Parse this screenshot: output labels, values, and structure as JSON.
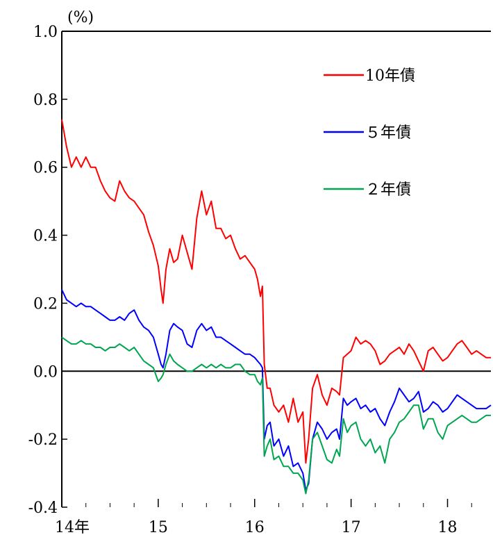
{
  "chart_data": {
    "type": "line",
    "unit_label": "(%)",
    "x_ticks": [
      "14年",
      "15",
      "16",
      "17",
      "18"
    ],
    "x_range": [
      2014.0,
      2018.45
    ],
    "y_ticks": [
      "1.0",
      "0.8",
      "0.6",
      "0.4",
      "0.2",
      "0.0",
      "-0.2",
      "-0.4"
    ],
    "y_tick_values": [
      1.0,
      0.8,
      0.6,
      0.4,
      0.2,
      0.0,
      -0.2,
      -0.4
    ],
    "ylim": [
      -0.4,
      1.0
    ],
    "grid": false,
    "legend_position": "top-right",
    "series": [
      {
        "name": "10年債",
        "color": "#ff0000",
        "x": [
          2014.0,
          2014.05,
          2014.1,
          2014.15,
          2014.2,
          2014.25,
          2014.3,
          2014.35,
          2014.4,
          2014.45,
          2014.5,
          2014.55,
          2014.6,
          2014.65,
          2014.7,
          2014.75,
          2014.8,
          2014.85,
          2014.9,
          2014.95,
          2015.0,
          2015.03,
          2015.05,
          2015.08,
          2015.12,
          2015.16,
          2015.2,
          2015.25,
          2015.3,
          2015.35,
          2015.4,
          2015.45,
          2015.5,
          2015.55,
          2015.6,
          2015.65,
          2015.7,
          2015.75,
          2015.8,
          2015.85,
          2015.9,
          2015.95,
          2016.0,
          2016.03,
          2016.06,
          2016.08,
          2016.1,
          2016.13,
          2016.16,
          2016.2,
          2016.25,
          2016.3,
          2016.35,
          2016.4,
          2016.45,
          2016.5,
          2016.53,
          2016.56,
          2016.6,
          2016.65,
          2016.7,
          2016.75,
          2016.8,
          2016.85,
          2016.88,
          2016.92,
          2016.96,
          2017.0,
          2017.05,
          2017.1,
          2017.15,
          2017.2,
          2017.25,
          2017.3,
          2017.35,
          2017.4,
          2017.45,
          2017.5,
          2017.55,
          2017.6,
          2017.65,
          2017.7,
          2017.75,
          2017.8,
          2017.85,
          2017.9,
          2017.95,
          2018.0,
          2018.05,
          2018.1,
          2018.15,
          2018.2,
          2018.25,
          2018.3,
          2018.35,
          2018.4,
          2018.45
        ],
        "y": [
          0.74,
          0.66,
          0.6,
          0.63,
          0.6,
          0.63,
          0.6,
          0.6,
          0.56,
          0.53,
          0.51,
          0.5,
          0.56,
          0.53,
          0.51,
          0.5,
          0.48,
          0.46,
          0.41,
          0.37,
          0.31,
          0.24,
          0.2,
          0.3,
          0.36,
          0.32,
          0.33,
          0.4,
          0.35,
          0.3,
          0.45,
          0.53,
          0.46,
          0.5,
          0.42,
          0.42,
          0.39,
          0.4,
          0.36,
          0.33,
          0.34,
          0.32,
          0.3,
          0.27,
          0.22,
          0.25,
          0.02,
          -0.05,
          -0.05,
          -0.1,
          -0.12,
          -0.1,
          -0.15,
          -0.08,
          -0.15,
          -0.12,
          -0.27,
          -0.2,
          -0.05,
          -0.01,
          -0.07,
          -0.1,
          -0.05,
          -0.06,
          -0.07,
          0.04,
          0.05,
          0.06,
          0.1,
          0.08,
          0.09,
          0.08,
          0.06,
          0.02,
          0.03,
          0.05,
          0.06,
          0.07,
          0.05,
          0.08,
          0.06,
          0.03,
          0.0,
          0.06,
          0.07,
          0.05,
          0.03,
          0.04,
          0.06,
          0.08,
          0.09,
          0.07,
          0.05,
          0.06,
          0.05,
          0.04,
          0.04
        ]
      },
      {
        "name": "５年債",
        "color": "#0000ff",
        "x": [
          2014.0,
          2014.05,
          2014.1,
          2014.15,
          2014.2,
          2014.25,
          2014.3,
          2014.35,
          2014.4,
          2014.45,
          2014.5,
          2014.55,
          2014.6,
          2014.65,
          2014.7,
          2014.75,
          2014.8,
          2014.85,
          2014.9,
          2014.95,
          2015.0,
          2015.03,
          2015.05,
          2015.08,
          2015.12,
          2015.16,
          2015.2,
          2015.25,
          2015.3,
          2015.35,
          2015.4,
          2015.45,
          2015.5,
          2015.55,
          2015.6,
          2015.65,
          2015.7,
          2015.75,
          2015.8,
          2015.85,
          2015.9,
          2015.95,
          2016.0,
          2016.03,
          2016.06,
          2016.08,
          2016.1,
          2016.13,
          2016.16,
          2016.2,
          2016.25,
          2016.3,
          2016.35,
          2016.4,
          2016.45,
          2016.5,
          2016.53,
          2016.56,
          2016.6,
          2016.65,
          2016.7,
          2016.75,
          2016.8,
          2016.85,
          2016.88,
          2016.92,
          2016.96,
          2017.0,
          2017.05,
          2017.1,
          2017.15,
          2017.2,
          2017.25,
          2017.3,
          2017.35,
          2017.4,
          2017.45,
          2017.5,
          2017.55,
          2017.6,
          2017.65,
          2017.7,
          2017.75,
          2017.8,
          2017.85,
          2017.9,
          2017.95,
          2018.0,
          2018.05,
          2018.1,
          2018.15,
          2018.2,
          2018.25,
          2018.3,
          2018.35,
          2018.4,
          2018.45
        ],
        "y": [
          0.24,
          0.21,
          0.2,
          0.19,
          0.2,
          0.19,
          0.19,
          0.18,
          0.17,
          0.16,
          0.15,
          0.15,
          0.16,
          0.15,
          0.17,
          0.18,
          0.15,
          0.13,
          0.12,
          0.1,
          0.05,
          0.02,
          0.01,
          0.05,
          0.12,
          0.14,
          0.13,
          0.12,
          0.08,
          0.07,
          0.12,
          0.14,
          0.12,
          0.13,
          0.1,
          0.1,
          0.09,
          0.08,
          0.07,
          0.06,
          0.05,
          0.05,
          0.04,
          0.03,
          0.02,
          0.01,
          -0.2,
          -0.16,
          -0.15,
          -0.22,
          -0.2,
          -0.25,
          -0.22,
          -0.28,
          -0.27,
          -0.3,
          -0.35,
          -0.33,
          -0.2,
          -0.15,
          -0.17,
          -0.2,
          -0.18,
          -0.17,
          -0.2,
          -0.08,
          -0.1,
          -0.09,
          -0.08,
          -0.11,
          -0.1,
          -0.12,
          -0.11,
          -0.14,
          -0.16,
          -0.12,
          -0.09,
          -0.05,
          -0.07,
          -0.09,
          -0.08,
          -0.06,
          -0.12,
          -0.11,
          -0.09,
          -0.1,
          -0.12,
          -0.11,
          -0.09,
          -0.07,
          -0.08,
          -0.09,
          -0.1,
          -0.11,
          -0.11,
          -0.11,
          -0.1
        ]
      },
      {
        "name": "２年債",
        "color": "#00a550",
        "x": [
          2014.0,
          2014.05,
          2014.1,
          2014.15,
          2014.2,
          2014.25,
          2014.3,
          2014.35,
          2014.4,
          2014.45,
          2014.5,
          2014.55,
          2014.6,
          2014.65,
          2014.7,
          2014.75,
          2014.8,
          2014.85,
          2014.9,
          2014.95,
          2015.0,
          2015.03,
          2015.05,
          2015.08,
          2015.12,
          2015.16,
          2015.2,
          2015.25,
          2015.3,
          2015.35,
          2015.4,
          2015.45,
          2015.5,
          2015.55,
          2015.6,
          2015.65,
          2015.7,
          2015.75,
          2015.8,
          2015.85,
          2015.9,
          2015.95,
          2016.0,
          2016.03,
          2016.06,
          2016.08,
          2016.1,
          2016.13,
          2016.16,
          2016.2,
          2016.25,
          2016.3,
          2016.35,
          2016.4,
          2016.45,
          2016.5,
          2016.53,
          2016.56,
          2016.6,
          2016.65,
          2016.7,
          2016.75,
          2016.8,
          2016.85,
          2016.88,
          2016.92,
          2016.96,
          2017.0,
          2017.05,
          2017.1,
          2017.15,
          2017.2,
          2017.25,
          2017.3,
          2017.35,
          2017.4,
          2017.45,
          2017.5,
          2017.55,
          2017.6,
          2017.65,
          2017.7,
          2017.75,
          2017.8,
          2017.85,
          2017.9,
          2017.95,
          2018.0,
          2018.05,
          2018.1,
          2018.15,
          2018.2,
          2018.25,
          2018.3,
          2018.35,
          2018.4,
          2018.45
        ],
        "y": [
          0.1,
          0.09,
          0.08,
          0.08,
          0.09,
          0.08,
          0.08,
          0.07,
          0.07,
          0.06,
          0.07,
          0.07,
          0.08,
          0.07,
          0.06,
          0.07,
          0.05,
          0.03,
          0.02,
          0.01,
          -0.03,
          -0.02,
          -0.01,
          0.02,
          0.05,
          0.03,
          0.02,
          0.01,
          0.0,
          0.0,
          0.01,
          0.02,
          0.01,
          0.02,
          0.01,
          0.02,
          0.01,
          0.01,
          0.02,
          0.02,
          0.0,
          -0.01,
          -0.01,
          -0.03,
          -0.04,
          -0.02,
          -0.25,
          -0.22,
          -0.2,
          -0.26,
          -0.25,
          -0.28,
          -0.28,
          -0.3,
          -0.3,
          -0.32,
          -0.36,
          -0.32,
          -0.2,
          -0.18,
          -0.22,
          -0.26,
          -0.27,
          -0.23,
          -0.25,
          -0.14,
          -0.18,
          -0.16,
          -0.15,
          -0.2,
          -0.22,
          -0.2,
          -0.24,
          -0.22,
          -0.27,
          -0.2,
          -0.18,
          -0.15,
          -0.14,
          -0.12,
          -0.1,
          -0.1,
          -0.17,
          -0.14,
          -0.14,
          -0.18,
          -0.2,
          -0.16,
          -0.15,
          -0.14,
          -0.13,
          -0.14,
          -0.15,
          -0.15,
          -0.14,
          -0.13,
          -0.13
        ]
      }
    ]
  }
}
